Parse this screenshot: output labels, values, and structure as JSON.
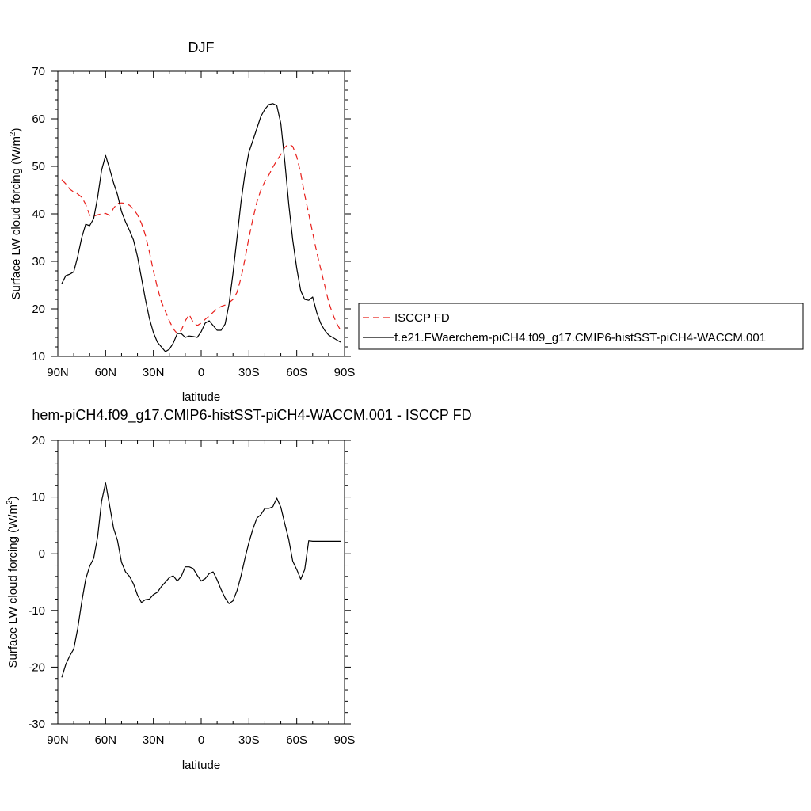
{
  "chart_data": [
    {
      "type": "line",
      "title": "DJF",
      "xlabel": "latitude",
      "ylabel": "Surface LW cloud forcing (W/m",
      "ylabel_sup": "2",
      "ylabel_close": ")",
      "xlim": [
        90,
        -90
      ],
      "ylim": [
        10,
        70
      ],
      "x_ticks": [
        90,
        60,
        30,
        0,
        -30,
        -60,
        -90
      ],
      "x_tick_labels": [
        "90N",
        "60N",
        "30N",
        "0",
        "30S",
        "60S",
        "90S"
      ],
      "y_ticks": [
        10,
        20,
        30,
        40,
        50,
        60,
        70
      ],
      "y_tick_labels": [
        "10",
        "20",
        "30",
        "40",
        "50",
        "60",
        "70"
      ],
      "legend_position": "right",
      "series": [
        {
          "name": "ISCCP FD",
          "color": "#e8201c",
          "dash": "dashed",
          "x": [
            87.5,
            85,
            82.5,
            80,
            77.5,
            75,
            72.5,
            70,
            67.5,
            65,
            62.5,
            60,
            57.5,
            55,
            52.5,
            50,
            47.5,
            45,
            42.5,
            40,
            37.5,
            35,
            32.5,
            30,
            27.5,
            25,
            22.5,
            20,
            17.5,
            15,
            12.5,
            10,
            7.5,
            5,
            2.5,
            0,
            -2.5,
            -5,
            -7.5,
            -10,
            -12.5,
            -15,
            -17.5,
            -20,
            -22.5,
            -25,
            -27.5,
            -30,
            -32.5,
            -35,
            -37.5,
            -40,
            -42.5,
            -45,
            -47.5,
            -50,
            -52.5,
            -55,
            -57.5,
            -60,
            -62.5,
            -65,
            -67.5,
            -70,
            -72.5,
            -75,
            -77.5,
            -80,
            -82.5,
            -85,
            -87.5
          ],
          "y": [
            47.2,
            46.3,
            45.2,
            44.6,
            44.2,
            43.5,
            42.0,
            39.7,
            39.5,
            39.8,
            40.0,
            40.1,
            39.7,
            41.2,
            42.2,
            42.3,
            42.2,
            41.8,
            41.0,
            39.8,
            38.0,
            35.5,
            32.0,
            28.0,
            24.5,
            21.5,
            19.5,
            17.5,
            15.8,
            14.8,
            15.5,
            17.5,
            18.8,
            17.2,
            16.5,
            17.0,
            17.8,
            18.5,
            19.3,
            20.0,
            20.5,
            20.8,
            21.3,
            22.0,
            23.5,
            26.5,
            30.5,
            35.0,
            39.0,
            42.5,
            45.0,
            46.8,
            48.2,
            49.8,
            51.2,
            52.5,
            54.0,
            54.7,
            54.2,
            52.0,
            48.5,
            44.0,
            40.0,
            36.0,
            32.0,
            28.5,
            25.0,
            21.5,
            19.0,
            17.0,
            15.5
          ]
        },
        {
          "name": "f.e21.FWaerchem-piCH4.f09_g17.CMIP6-histSST-piCH4-WACCM.001",
          "color": "#000000",
          "dash": "solid",
          "x": [
            87.5,
            85,
            82.5,
            80,
            77.5,
            75,
            72.5,
            70,
            67.5,
            65,
            62.5,
            60,
            57.5,
            55,
            52.5,
            50,
            47.5,
            45,
            42.5,
            40,
            37.5,
            35,
            32.5,
            30,
            27.5,
            25,
            22.5,
            20,
            17.5,
            15,
            12.5,
            10,
            7.5,
            5,
            2.5,
            0,
            -2.5,
            -5,
            -7.5,
            -10,
            -12.5,
            -15,
            -17.5,
            -20,
            -22.5,
            -25,
            -27.5,
            -30,
            -32.5,
            -35,
            -37.5,
            -40,
            -42.5,
            -45,
            -47.5,
            -50,
            -52.5,
            -55,
            -57.5,
            -60,
            -62.5,
            -65,
            -67.5,
            -70,
            -72.5,
            -75,
            -77.5,
            -80,
            -82.5,
            -85,
            -87.5
          ],
          "y": [
            25.3,
            27.0,
            27.3,
            27.8,
            31.0,
            35.0,
            37.8,
            37.5,
            39.0,
            43.5,
            49.2,
            52.3,
            49.5,
            46.5,
            44.0,
            40.5,
            38.3,
            36.5,
            34.5,
            31.0,
            26.5,
            22.0,
            18.0,
            15.0,
            13.0,
            12.0,
            11.0,
            11.5,
            12.8,
            14.8,
            14.8,
            14.0,
            14.3,
            14.2,
            14.0,
            15.2,
            17.0,
            17.5,
            16.5,
            15.5,
            15.5,
            16.8,
            21.0,
            27.5,
            35.0,
            42.5,
            48.5,
            53.0,
            55.5,
            58.0,
            60.5,
            62.0,
            63.0,
            63.2,
            62.8,
            59.0,
            51.0,
            42.0,
            34.5,
            28.5,
            23.8,
            22.0,
            21.8,
            22.5,
            19.3,
            17.0,
            15.5,
            14.5,
            14.0,
            13.5,
            13.0
          ]
        }
      ]
    },
    {
      "type": "line",
      "title": "hem-piCH4.f09_g17.CMIP6-histSST-piCH4-WACCM.001 - ISCCP FD",
      "xlabel": "latitude",
      "ylabel": "Surface LW cloud forcing (W/m",
      "ylabel_sup": "2",
      "ylabel_close": ")",
      "xlim": [
        90,
        -90
      ],
      "ylim": [
        -30,
        20
      ],
      "x_ticks": [
        90,
        60,
        30,
        0,
        -30,
        -60,
        -90
      ],
      "x_tick_labels": [
        "90N",
        "60N",
        "30N",
        "0",
        "30S",
        "60S",
        "90S"
      ],
      "y_ticks": [
        -30,
        -20,
        -10,
        0,
        10,
        20
      ],
      "y_tick_labels": [
        "-30",
        "-20",
        "-10",
        "0",
        "10",
        "20"
      ],
      "series": [
        {
          "color": "#000000",
          "dash": "solid",
          "x": [
            87.5,
            85,
            82.5,
            80,
            77.5,
            75,
            72.5,
            70,
            67.5,
            65,
            62.5,
            60,
            57.5,
            55,
            52.5,
            50,
            47.5,
            45,
            42.5,
            40,
            37.5,
            35,
            32.5,
            30,
            27.5,
            25,
            22.5,
            20,
            17.5,
            15,
            12.5,
            10,
            7.5,
            5,
            2.5,
            0,
            -2.5,
            -5,
            -7.5,
            -10,
            -12.5,
            -15,
            -17.5,
            -20,
            -22.5,
            -25,
            -27.5,
            -30,
            -32.5,
            -35,
            -37.5,
            -40,
            -42.5,
            -45,
            -47.5,
            -50,
            -52.5,
            -55,
            -57.5,
            -60,
            -62.5,
            -65,
            -67.5,
            -70,
            -72.5,
            -75,
            -77.5,
            -80,
            -82.5,
            -85,
            -87.5
          ],
          "y": [
            -21.8,
            -19.5,
            -18.0,
            -16.8,
            -13.2,
            -8.5,
            -4.5,
            -2.2,
            -0.8,
            3.0,
            9.3,
            12.5,
            8.5,
            4.5,
            2.3,
            -1.5,
            -3.2,
            -4.0,
            -5.3,
            -7.3,
            -8.6,
            -8.1,
            -8.0,
            -7.2,
            -6.8,
            -5.8,
            -5.0,
            -4.2,
            -3.9,
            -4.8,
            -4.0,
            -2.3,
            -2.3,
            -2.6,
            -3.8,
            -4.8,
            -4.4,
            -3.5,
            -3.2,
            -4.6,
            -6.3,
            -7.8,
            -8.8,
            -8.3,
            -6.5,
            -3.9,
            -0.8,
            2.0,
            4.4,
            6.3,
            6.9,
            8.0,
            8.0,
            8.3,
            9.8,
            8.2,
            5.3,
            2.5,
            -1.3,
            -2.8,
            -4.5,
            -2.8,
            2.3,
            2.2,
            2.2,
            2.2,
            2.2,
            2.2,
            2.2,
            2.2,
            2.2
          ]
        }
      ]
    }
  ]
}
